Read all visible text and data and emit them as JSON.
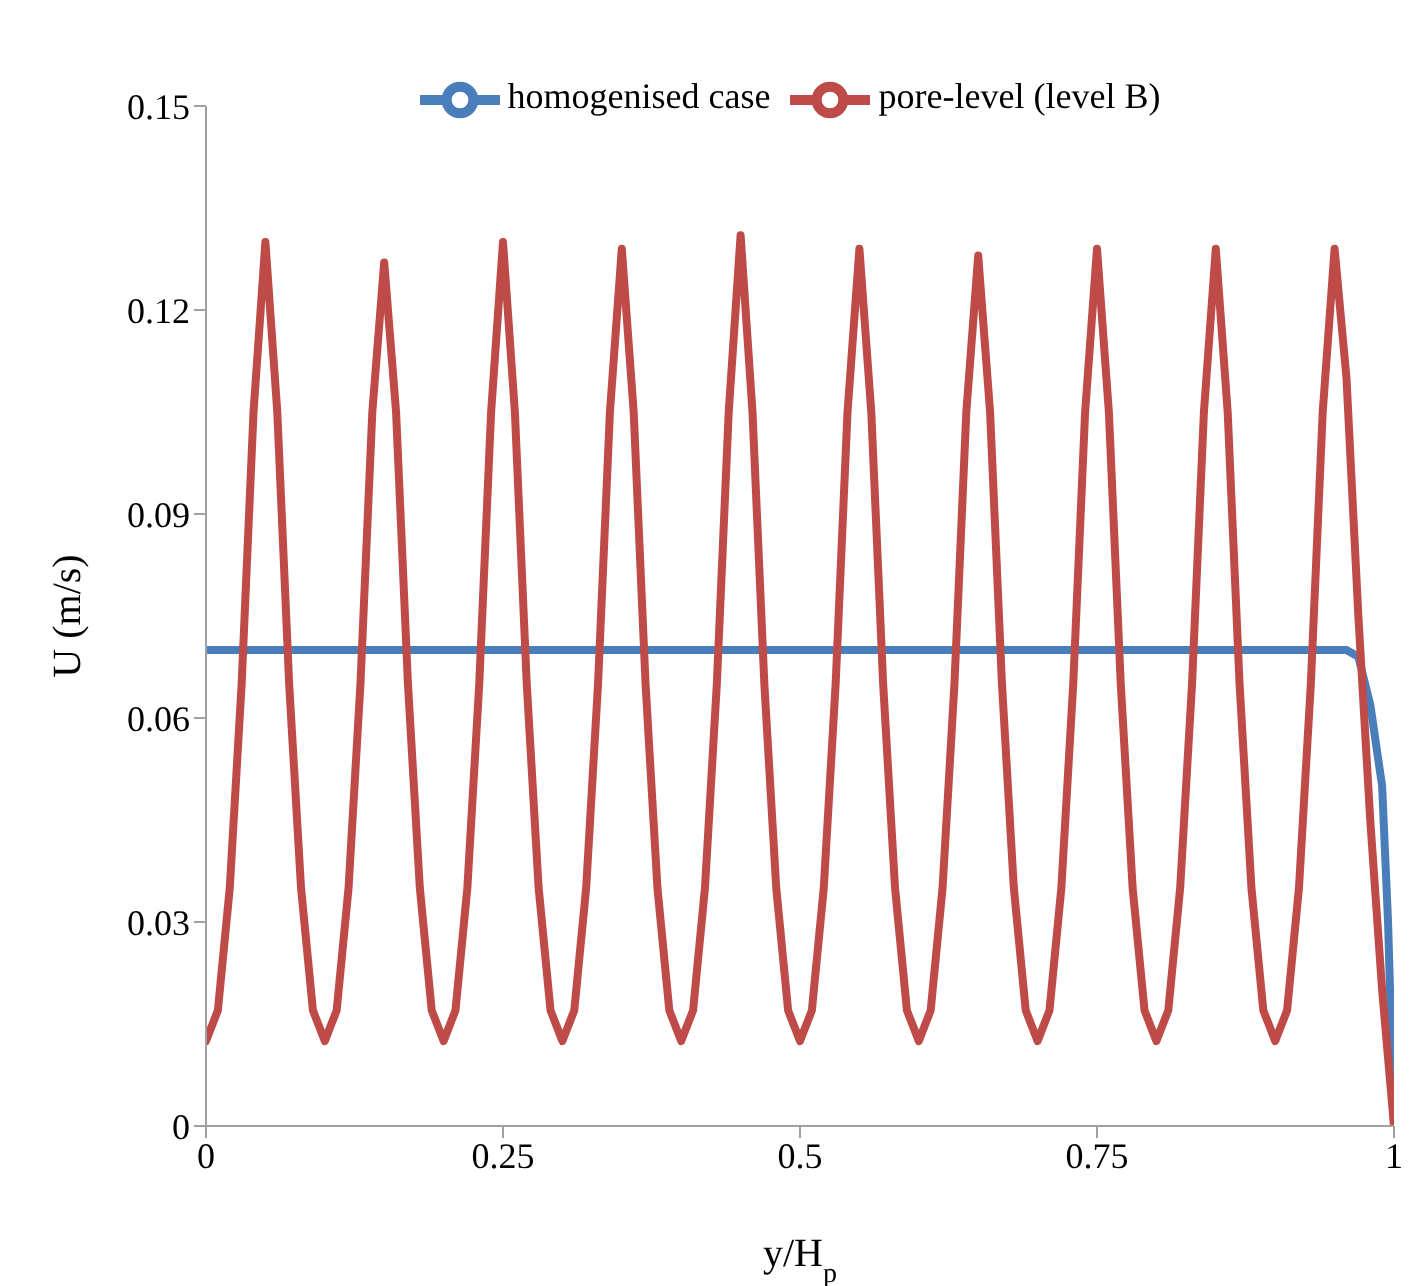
{
  "chart_data": {
    "type": "line",
    "xlabel": "y/H$_{p}$",
    "ylabel": "U (m/s)",
    "xlim": [
      0,
      1
    ],
    "xticks": [
      0,
      0.25,
      0.5,
      0.75,
      1
    ],
    "ylim": [
      0,
      0.15
    ],
    "yticks": [
      0,
      0.03,
      0.06,
      0.09,
      0.12,
      0.15
    ],
    "grid": false,
    "legend": "top",
    "series": [
      {
        "name": "homogenised case",
        "color": "#4a7ebb",
        "x": [
          0,
          0.1,
          0.2,
          0.3,
          0.4,
          0.5,
          0.6,
          0.7,
          0.8,
          0.9,
          0.96,
          0.97,
          0.98,
          0.99,
          0.995,
          1
        ],
        "values": [
          0.07,
          0.07,
          0.07,
          0.07,
          0.07,
          0.07,
          0.07,
          0.07,
          0.07,
          0.07,
          0.07,
          0.069,
          0.062,
          0.05,
          0.03,
          0
        ]
      },
      {
        "name": "pore-level (level B)",
        "color": "#be4b48",
        "x": [
          0,
          0.01,
          0.02,
          0.03,
          0.04,
          0.05,
          0.06,
          0.07,
          0.08,
          0.09,
          0.1,
          0.11,
          0.12,
          0.13,
          0.14,
          0.15,
          0.16,
          0.17,
          0.18,
          0.19,
          0.2,
          0.21,
          0.22,
          0.23,
          0.24,
          0.25,
          0.26,
          0.27,
          0.28,
          0.29,
          0.3,
          0.31,
          0.32,
          0.33,
          0.34,
          0.35,
          0.36,
          0.37,
          0.38,
          0.39,
          0.4,
          0.41,
          0.42,
          0.43,
          0.44,
          0.45,
          0.46,
          0.47,
          0.48,
          0.49,
          0.5,
          0.51,
          0.52,
          0.53,
          0.54,
          0.55,
          0.56,
          0.57,
          0.58,
          0.59,
          0.6,
          0.61,
          0.62,
          0.63,
          0.64,
          0.65,
          0.66,
          0.67,
          0.68,
          0.69,
          0.7,
          0.71,
          0.72,
          0.73,
          0.74,
          0.75,
          0.76,
          0.77,
          0.78,
          0.79,
          0.8,
          0.81,
          0.82,
          0.83,
          0.84,
          0.85,
          0.86,
          0.87,
          0.88,
          0.89,
          0.9,
          0.91,
          0.92,
          0.93,
          0.94,
          0.95,
          0.96,
          0.97,
          0.98,
          0.99,
          1
        ],
        "values": [
          0.0125,
          0.017,
          0.035,
          0.065,
          0.105,
          0.13,
          0.105,
          0.065,
          0.035,
          0.017,
          0.0125,
          0.017,
          0.035,
          0.065,
          0.105,
          0.127,
          0.105,
          0.065,
          0.035,
          0.017,
          0.0125,
          0.017,
          0.035,
          0.065,
          0.105,
          0.13,
          0.105,
          0.065,
          0.035,
          0.017,
          0.0125,
          0.017,
          0.035,
          0.065,
          0.105,
          0.129,
          0.105,
          0.065,
          0.035,
          0.017,
          0.0125,
          0.017,
          0.035,
          0.065,
          0.105,
          0.131,
          0.105,
          0.065,
          0.035,
          0.017,
          0.0125,
          0.017,
          0.035,
          0.065,
          0.105,
          0.129,
          0.105,
          0.065,
          0.035,
          0.017,
          0.0125,
          0.017,
          0.035,
          0.065,
          0.105,
          0.128,
          0.105,
          0.065,
          0.035,
          0.017,
          0.0125,
          0.017,
          0.035,
          0.065,
          0.105,
          0.129,
          0.105,
          0.065,
          0.035,
          0.017,
          0.0125,
          0.017,
          0.035,
          0.065,
          0.105,
          0.129,
          0.105,
          0.065,
          0.035,
          0.017,
          0.0125,
          0.017,
          0.035,
          0.065,
          0.105,
          0.129,
          0.11,
          0.075,
          0.045,
          0.02,
          0
        ]
      }
    ]
  }
}
